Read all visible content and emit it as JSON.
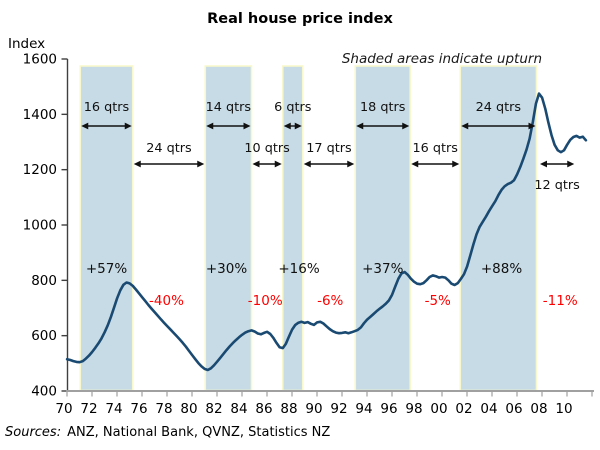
{
  "chart_data": {
    "type": "line",
    "title": "Real house price index",
    "ylabel": "Index",
    "note": "Shaded areas indicate upturn",
    "source_label": "Sources:",
    "source_text": "ANZ, National Bank, QVNZ, Statistics NZ",
    "grid": "off",
    "legend": "none",
    "ylim": [
      400,
      1600
    ],
    "xlim": [
      1970,
      2012.3
    ],
    "y_ticks": [
      400,
      600,
      800,
      1000,
      1200,
      1400,
      1600
    ],
    "x_tick_years": [
      1970,
      1972,
      1974,
      1976,
      1978,
      1980,
      1982,
      1984,
      1986,
      1988,
      1990,
      1992,
      1994,
      1996,
      1998,
      2000,
      2002,
      2004,
      2006,
      2008,
      2010
    ],
    "x_tick_labels": [
      "70",
      "72",
      "74",
      "76",
      "78",
      "80",
      "82",
      "84",
      "86",
      "88",
      "90",
      "92",
      "94",
      "96",
      "98",
      "00",
      "02",
      "04",
      "06",
      "08",
      "10"
    ],
    "colors": {
      "line": "#1a4a72",
      "band_fill": "#c7dbe6",
      "band_edge": "#f8f8cc",
      "negative_label": "#ff0000",
      "positive_label": "#111111",
      "x_axis": "#a0a0a0",
      "y_axis": "#3f3f3f"
    },
    "upturns": [
      {
        "label": "16 qtrs",
        "start": 1971.3,
        "end": 1975.5,
        "gain_label": "+57%",
        "gain_label_year": 1973.4
      },
      {
        "label": "14 qtrs",
        "start": 1981.3,
        "end": 1985.0,
        "gain_label": "+30%",
        "gain_label_year": 1983.0
      },
      {
        "label": "6 qtrs",
        "start": 1987.5,
        "end": 1989.1,
        "gain_label": "+16%",
        "gain_label_year": 1988.8
      },
      {
        "label": "18 qtrs",
        "start": 1993.3,
        "end": 1997.7,
        "gain_label": "+37%",
        "gain_label_year": 1995.5
      },
      {
        "label": "24 qtrs",
        "start": 2001.7,
        "end": 2007.8,
        "gain_label": "+88%",
        "gain_label_year": 2005.0
      }
    ],
    "downturns": [
      {
        "label": "24 qtrs",
        "start": 1975.5,
        "end": 1981.3,
        "loss_label": "-40%",
        "loss_label_year": 1978.2,
        "label_position": "above"
      },
      {
        "label": "10 qtrs",
        "start": 1985.0,
        "end": 1987.5,
        "loss_label": "-10%",
        "loss_label_year": 1986.1,
        "label_position": "above"
      },
      {
        "label": "17 qtrs",
        "start": 1989.1,
        "end": 1993.3,
        "loss_label": "-6%",
        "loss_label_year": 1991.3,
        "label_position": "above"
      },
      {
        "label": "16 qtrs",
        "start": 1997.7,
        "end": 2001.7,
        "loss_label": "-5%",
        "loss_label_year": 1999.9,
        "label_position": "above"
      },
      {
        "label": "12 qtrs",
        "start": 2008.0,
        "end": 2010.9,
        "loss_label": "-11%",
        "loss_label_year": 2009.7,
        "label_position": "below"
      }
    ],
    "series": [
      {
        "name": "Real house price index",
        "points": [
          [
            1970.25,
            515
          ],
          [
            1970.5,
            512
          ],
          [
            1970.75,
            508
          ],
          [
            1971.0,
            505
          ],
          [
            1971.25,
            504
          ],
          [
            1971.5,
            508
          ],
          [
            1971.75,
            517
          ],
          [
            1972.0,
            528
          ],
          [
            1972.25,
            541
          ],
          [
            1972.5,
            556
          ],
          [
            1972.75,
            572
          ],
          [
            1973.0,
            590
          ],
          [
            1973.25,
            612
          ],
          [
            1973.5,
            638
          ],
          [
            1973.75,
            668
          ],
          [
            1974.0,
            701
          ],
          [
            1974.25,
            735
          ],
          [
            1974.5,
            764
          ],
          [
            1974.75,
            784
          ],
          [
            1975.0,
            792
          ],
          [
            1975.25,
            789
          ],
          [
            1975.5,
            780
          ],
          [
            1975.75,
            767
          ],
          [
            1976.0,
            753
          ],
          [
            1976.25,
            739
          ],
          [
            1976.5,
            725
          ],
          [
            1976.75,
            711
          ],
          [
            1977.0,
            698
          ],
          [
            1977.25,
            685
          ],
          [
            1977.5,
            672
          ],
          [
            1977.75,
            659
          ],
          [
            1978.0,
            647
          ],
          [
            1978.25,
            635
          ],
          [
            1978.5,
            623
          ],
          [
            1978.75,
            611
          ],
          [
            1979.0,
            599
          ],
          [
            1979.25,
            587
          ],
          [
            1979.5,
            574
          ],
          [
            1979.75,
            560
          ],
          [
            1980.0,
            545
          ],
          [
            1980.25,
            530
          ],
          [
            1980.5,
            515
          ],
          [
            1980.75,
            501
          ],
          [
            1981.0,
            489
          ],
          [
            1981.25,
            480
          ],
          [
            1981.5,
            476
          ],
          [
            1981.75,
            482
          ],
          [
            1982.0,
            493
          ],
          [
            1982.25,
            506
          ],
          [
            1982.5,
            520
          ],
          [
            1982.75,
            534
          ],
          [
            1983.0,
            548
          ],
          [
            1983.25,
            561
          ],
          [
            1983.5,
            573
          ],
          [
            1983.75,
            584
          ],
          [
            1984.0,
            594
          ],
          [
            1984.25,
            603
          ],
          [
            1984.5,
            611
          ],
          [
            1984.75,
            616
          ],
          [
            1985.0,
            619
          ],
          [
            1985.25,
            615
          ],
          [
            1985.5,
            608
          ],
          [
            1985.75,
            605
          ],
          [
            1986.0,
            610
          ],
          [
            1986.25,
            614
          ],
          [
            1986.5,
            606
          ],
          [
            1986.75,
            592
          ],
          [
            1987.0,
            574
          ],
          [
            1987.25,
            558
          ],
          [
            1987.5,
            555
          ],
          [
            1987.75,
            571
          ],
          [
            1988.0,
            597
          ],
          [
            1988.25,
            622
          ],
          [
            1988.5,
            639
          ],
          [
            1988.75,
            647
          ],
          [
            1989.0,
            650
          ],
          [
            1989.25,
            646
          ],
          [
            1989.5,
            649
          ],
          [
            1989.75,
            643
          ],
          [
            1990.0,
            639
          ],
          [
            1990.25,
            648
          ],
          [
            1990.5,
            650
          ],
          [
            1990.75,
            644
          ],
          [
            1991.0,
            634
          ],
          [
            1991.25,
            624
          ],
          [
            1991.5,
            616
          ],
          [
            1991.75,
            611
          ],
          [
            1992.0,
            609
          ],
          [
            1992.25,
            610
          ],
          [
            1992.5,
            612
          ],
          [
            1992.75,
            609
          ],
          [
            1993.0,
            612
          ],
          [
            1993.25,
            616
          ],
          [
            1993.5,
            621
          ],
          [
            1993.75,
            630
          ],
          [
            1994.0,
            645
          ],
          [
            1994.25,
            658
          ],
          [
            1994.5,
            668
          ],
          [
            1994.75,
            678
          ],
          [
            1995.0,
            688
          ],
          [
            1995.25,
            697
          ],
          [
            1995.5,
            706
          ],
          [
            1995.75,
            716
          ],
          [
            1996.0,
            728
          ],
          [
            1996.25,
            748
          ],
          [
            1996.5,
            778
          ],
          [
            1996.75,
            806
          ],
          [
            1997.0,
            825
          ],
          [
            1997.25,
            830
          ],
          [
            1997.5,
            820
          ],
          [
            1997.75,
            806
          ],
          [
            1998.0,
            795
          ],
          [
            1998.25,
            788
          ],
          [
            1998.5,
            786
          ],
          [
            1998.75,
            790
          ],
          [
            1999.0,
            800
          ],
          [
            1999.25,
            812
          ],
          [
            1999.5,
            818
          ],
          [
            1999.75,
            815
          ],
          [
            2000.0,
            810
          ],
          [
            2000.25,
            812
          ],
          [
            2000.5,
            810
          ],
          [
            2000.75,
            800
          ],
          [
            2001.0,
            788
          ],
          [
            2001.25,
            783
          ],
          [
            2001.5,
            790
          ],
          [
            2001.75,
            805
          ],
          [
            2002.0,
            822
          ],
          [
            2002.25,
            850
          ],
          [
            2002.5,
            890
          ],
          [
            2002.75,
            930
          ],
          [
            2003.0,
            966
          ],
          [
            2003.25,
            993
          ],
          [
            2003.5,
            1012
          ],
          [
            2003.75,
            1030
          ],
          [
            2004.0,
            1050
          ],
          [
            2004.25,
            1068
          ],
          [
            2004.5,
            1086
          ],
          [
            2004.75,
            1108
          ],
          [
            2005.0,
            1127
          ],
          [
            2005.25,
            1140
          ],
          [
            2005.5,
            1148
          ],
          [
            2005.75,
            1153
          ],
          [
            2006.0,
            1162
          ],
          [
            2006.25,
            1183
          ],
          [
            2006.5,
            1210
          ],
          [
            2006.75,
            1240
          ],
          [
            2007.0,
            1272
          ],
          [
            2007.25,
            1312
          ],
          [
            2007.5,
            1372
          ],
          [
            2007.75,
            1438
          ],
          [
            2008.0,
            1475
          ],
          [
            2008.25,
            1460
          ],
          [
            2008.5,
            1420
          ],
          [
            2008.75,
            1370
          ],
          [
            2009.0,
            1325
          ],
          [
            2009.25,
            1290
          ],
          [
            2009.5,
            1270
          ],
          [
            2009.75,
            1263
          ],
          [
            2010.0,
            1270
          ],
          [
            2010.25,
            1290
          ],
          [
            2010.5,
            1308
          ],
          [
            2010.75,
            1318
          ],
          [
            2011.0,
            1322
          ],
          [
            2011.25,
            1316
          ],
          [
            2011.5,
            1319
          ],
          [
            2011.75,
            1306
          ]
        ]
      }
    ]
  }
}
